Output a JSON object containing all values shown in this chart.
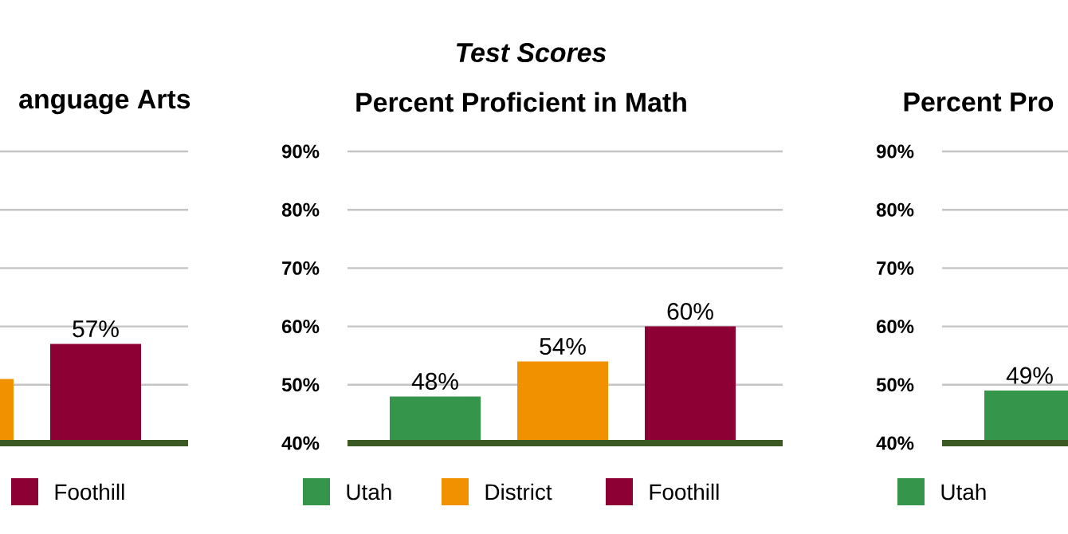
{
  "chart_data": [
    {
      "type": "bar",
      "title": "anguage Arts",
      "categories": [
        null
      ],
      "ylim": [
        40,
        90
      ],
      "yticks": [
        40,
        50,
        60,
        70,
        80,
        90
      ],
      "grid": "y",
      "legend": "bottom",
      "tick_labels": false,
      "series": [
        {
          "color": "#f29100",
          "values": [
            51
          ]
        },
        {
          "name": "Foothill",
          "color": "#8c0034",
          "values": [
            57
          ],
          "value_labels": [
            "57%"
          ]
        }
      ]
    },
    {
      "type": "bar",
      "title": "Test Scores",
      "subtitle": "Percent Proficient in Math",
      "categories": [
        null
      ],
      "ylim": [
        40,
        90
      ],
      "yticks": [
        {
          "value": 40,
          "label": "40%"
        },
        {
          "value": 50,
          "label": "50%"
        },
        {
          "value": 60,
          "label": "60%"
        },
        {
          "value": 70,
          "label": "70%"
        },
        {
          "value": 80,
          "label": "80%"
        },
        {
          "value": 90,
          "label": "90%"
        }
      ],
      "grid": "y",
      "legend": "bottom",
      "series": [
        {
          "name": "Utah",
          "color": "#35954a",
          "values": [
            48
          ],
          "value_labels": [
            "48%"
          ]
        },
        {
          "name": "District",
          "color": "#f29100",
          "values": [
            54
          ],
          "value_labels": [
            "54%"
          ]
        },
        {
          "name": "Foothill",
          "color": "#8c0034",
          "values": [
            60
          ],
          "value_labels": [
            "60%"
          ]
        }
      ]
    },
    {
      "type": "bar",
      "title": "Percent Pro",
      "categories": [
        null
      ],
      "ylim": [
        40,
        90
      ],
      "yticks": [
        {
          "value": 40,
          "label": "40%"
        },
        {
          "value": 50,
          "label": "50%"
        },
        {
          "value": 60,
          "label": "60%"
        },
        {
          "value": 70,
          "label": "70%"
        },
        {
          "value": 80,
          "label": "80%"
        },
        {
          "value": 90,
          "label": "90%"
        }
      ],
      "grid": "y",
      "legend": "bottom",
      "series": [
        {
          "name": "Utah",
          "color": "#35954a",
          "values": [
            49
          ],
          "value_labels": [
            "49%"
          ]
        }
      ]
    }
  ]
}
